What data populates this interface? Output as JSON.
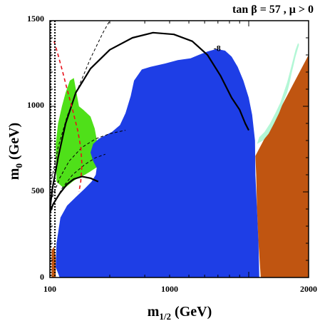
{
  "chart_data": {
    "type": "area",
    "title": "tan β = 57 ,  μ > 0",
    "xlabel": "m1/2 (GeV)",
    "ylabel": "m0 (GeV)",
    "x_scale": "log",
    "xlim": [
      100,
      2000
    ],
    "ylim": [
      0,
      1500
    ],
    "x_ticks": [
      100,
      1000,
      2000
    ],
    "y_ticks": [
      0,
      500,
      1000,
      1500
    ],
    "grid": false,
    "colors": {
      "brown": "#c05511",
      "blue": "#1e3ee6",
      "green": "#4fe019",
      "light_green": "#b3f7d6",
      "contour": "#000000",
      "red_dash": "#e8101a"
    },
    "regions": [
      {
        "name": "brown-right",
        "color": "#c05511",
        "points": [
          [
            2000,
            1300
          ],
          [
            2000,
            0
          ],
          [
            1150,
            0
          ],
          [
            1120,
            200
          ],
          [
            1100,
            400
          ],
          [
            1090,
            600
          ],
          [
            1080,
            710
          ]
        ]
      },
      {
        "name": "brown-left-sliver",
        "color": "#c05511",
        "points": [
          [
            102,
            0
          ],
          [
            102,
            160
          ],
          [
            105,
            180
          ],
          [
            107,
            120
          ],
          [
            107,
            0
          ]
        ]
      },
      {
        "name": "green",
        "color": "#4fe019",
        "points": [
          [
            107,
            780
          ],
          [
            110,
            900
          ],
          [
            115,
            1000
          ],
          [
            120,
            1080
          ],
          [
            126,
            1150
          ],
          [
            132,
            1165
          ],
          [
            136,
            1080
          ],
          [
            140,
            1000
          ],
          [
            147,
            980
          ],
          [
            160,
            940
          ],
          [
            168,
            870
          ],
          [
            173,
            790
          ],
          [
            176,
            720
          ],
          [
            177,
            650
          ],
          [
            170,
            640
          ],
          [
            160,
            620
          ],
          [
            150,
            600
          ],
          [
            140,
            585
          ],
          [
            130,
            560
          ],
          [
            118,
            520
          ],
          [
            108,
            560
          ]
        ]
      },
      {
        "name": "blue",
        "color": "#1e3ee6",
        "points": [
          [
            112,
            0
          ],
          [
            1130,
            0
          ],
          [
            1120,
            200
          ],
          [
            1100,
            400
          ],
          [
            1080,
            600
          ],
          [
            1075,
            800
          ],
          [
            1040,
            950
          ],
          [
            1000,
            1050
          ],
          [
            940,
            1150
          ],
          [
            880,
            1230
          ],
          [
            820,
            1290
          ],
          [
            760,
            1325
          ],
          [
            690,
            1335
          ],
          [
            620,
            1320
          ],
          [
            560,
            1300
          ],
          [
            510,
            1280
          ],
          [
            440,
            1270
          ],
          [
            380,
            1250
          ],
          [
            320,
            1230
          ],
          [
            290,
            1215
          ],
          [
            265,
            1150
          ],
          [
            255,
            1060
          ],
          [
            240,
            960
          ],
          [
            225,
            890
          ],
          [
            205,
            850
          ],
          [
            190,
            830
          ],
          [
            176,
            810
          ],
          [
            165,
            780
          ],
          [
            160,
            730
          ],
          [
            165,
            680
          ],
          [
            172,
            640
          ],
          [
            170,
            600
          ],
          [
            162,
            560
          ],
          [
            150,
            520
          ],
          [
            135,
            470
          ],
          [
            122,
            420
          ],
          [
            113,
            350
          ],
          [
            108,
            200
          ],
          [
            107,
            60
          ]
        ]
      },
      {
        "name": "light-green-strip",
        "color": "#b3f7d6",
        "points": [
          [
            1100,
            780
          ],
          [
            1180,
            800
          ],
          [
            1260,
            840
          ],
          [
            1340,
            900
          ],
          [
            1420,
            960
          ],
          [
            1500,
            1030
          ],
          [
            1560,
            1080
          ],
          [
            1600,
            1130
          ],
          [
            1640,
            1190
          ],
          [
            1680,
            1240
          ],
          [
            1720,
            1290
          ],
          [
            1760,
            1330
          ],
          [
            1790,
            1360
          ],
          [
            1770,
            1370
          ],
          [
            1720,
            1330
          ],
          [
            1660,
            1260
          ],
          [
            1610,
            1200
          ],
          [
            1560,
            1140
          ],
          [
            1500,
            1080
          ],
          [
            1440,
            1020
          ],
          [
            1360,
            960
          ],
          [
            1280,
            900
          ],
          [
            1200,
            850
          ],
          [
            1130,
            820
          ]
        ]
      }
    ],
    "contours": [
      {
        "name": "solid-outer",
        "style": "solid",
        "width": 2.2,
        "points": [
          [
            100,
            400
          ],
          [
            103,
            520
          ],
          [
            110,
            700
          ],
          [
            120,
            900
          ],
          [
            135,
            1080
          ],
          [
            160,
            1220
          ],
          [
            200,
            1330
          ],
          [
            260,
            1400
          ],
          [
            330,
            1430
          ],
          [
            420,
            1420
          ],
          [
            520,
            1380
          ],
          [
            620,
            1300
          ],
          [
            720,
            1180
          ],
          [
            820,
            1050
          ],
          [
            900,
            980
          ],
          [
            960,
            900
          ],
          [
            1000,
            860
          ]
        ]
      },
      {
        "name": "solid-inner",
        "style": "solid",
        "width": 2.2,
        "points": [
          [
            100,
            380
          ],
          [
            104,
            430
          ],
          [
            112,
            490
          ],
          [
            122,
            545
          ],
          [
            132,
            575
          ],
          [
            145,
            590
          ],
          [
            160,
            580
          ],
          [
            175,
            560
          ]
        ]
      },
      {
        "name": "dashed-upper",
        "style": "dashed",
        "width": 1,
        "points": [
          [
            100,
            520
          ],
          [
            110,
            760
          ],
          [
            122,
            940
          ],
          [
            138,
            1100
          ],
          [
            160,
            1280
          ],
          [
            185,
            1430
          ],
          [
            200,
            1500
          ]
        ]
      },
      {
        "name": "dashed-lower",
        "style": "dashed",
        "width": 1,
        "points": [
          [
            103,
            470
          ],
          [
            112,
            580
          ],
          [
            125,
            680
          ],
          [
            145,
            760
          ],
          [
            170,
            810
          ],
          [
            200,
            840
          ],
          [
            240,
            860
          ]
        ]
      },
      {
        "name": "dashed-bottom",
        "style": "dashed",
        "width": 1,
        "points": [
          [
            106,
            440
          ],
          [
            115,
            520
          ],
          [
            130,
            600
          ],
          [
            150,
            660
          ],
          [
            170,
            700
          ],
          [
            190,
            720
          ]
        ]
      }
    ],
    "vertical_lines": [
      {
        "name": "dotted-left",
        "x": 101,
        "style": "dotted"
      },
      {
        "name": "dotted-right",
        "x": 106,
        "style": "dotted"
      }
    ],
    "red_dash": {
      "name": "red-dash-curve",
      "points": [
        [
          105,
          1380
        ],
        [
          110,
          1300
        ],
        [
          116,
          1200
        ],
        [
          122,
          1100
        ],
        [
          130,
          980
        ],
        [
          138,
          860
        ],
        [
          143,
          760
        ],
        [
          145,
          660
        ],
        [
          143,
          560
        ],
        [
          140,
          500
        ]
      ]
    },
    "annotations": [
      {
        "text": "-8",
        "x": 650,
        "y": 1340
      }
    ]
  }
}
